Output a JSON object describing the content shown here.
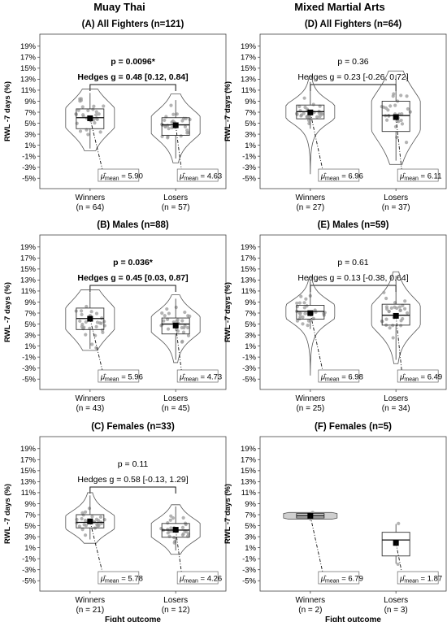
{
  "column_titles": [
    "Muay Thai",
    "Mixed Martial Arts"
  ],
  "colors": {
    "violin": "#555555",
    "box": "#333333",
    "point": "#9a9a9a",
    "mean": "#000000",
    "frame": "#444444"
  },
  "chart_data": [
    {
      "type": "violin",
      "panel": "A",
      "title": "(A) All Fighters (n=121)",
      "ylabel": "RWL -7 days (%)",
      "xlabel": "",
      "ylim": [
        -6,
        20
      ],
      "yticks": [
        "-5%",
        "-3%",
        "-1%",
        "1%",
        "3%",
        "5%",
        "7%",
        "9%",
        "11%",
        "13%",
        "15%",
        "17%",
        "19%"
      ],
      "annotation": {
        "p": "p = 0.0096*",
        "g": "Hedges g = 0.48 [0.12, 0.84]",
        "bold": true
      },
      "groups": [
        {
          "name": "Winners",
          "n_label": "(n = 64)",
          "mean": 5.9,
          "mean_label": "5.90",
          "median": 6.0,
          "q1": 4.0,
          "q3": 7.6,
          "min": 0.0,
          "max": 11.2,
          "whisker_low": 0.4,
          "whisker_high": 10.5
        },
        {
          "name": "Losers",
          "n_label": "(n = 57)",
          "mean": 4.63,
          "mean_label": "4.63",
          "median": 4.7,
          "q1": 2.8,
          "q3": 6.0,
          "min": -2.2,
          "max": 10.3,
          "whisker_low": -1.4,
          "whisker_high": 9.2
        }
      ]
    },
    {
      "type": "violin",
      "panel": "D",
      "title": "(D) All Fighters (n=64)",
      "ylabel": "RWL -7 days (%)",
      "xlabel": "",
      "ylim": [
        -6,
        20
      ],
      "yticks": [
        "-5%",
        "-3%",
        "-1%",
        "1%",
        "3%",
        "5%",
        "7%",
        "9%",
        "11%",
        "13%",
        "15%",
        "17%",
        "19%"
      ],
      "annotation": {
        "p": "p = 0.36",
        "g": "Hedges g = 0.23 [-0.26, 0.72]",
        "bold": false
      },
      "groups": [
        {
          "name": "Winners",
          "n_label": "(n = 27)",
          "mean": 6.96,
          "mean_label": "6.96",
          "median": 7.1,
          "q1": 5.8,
          "q3": 8.3,
          "min": -4.2,
          "max": 13.5,
          "whisker_low": 4.0,
          "whisker_high": 12.5
        },
        {
          "name": "Losers",
          "n_label": "(n = 37)",
          "mean": 6.11,
          "mean_label": "6.11",
          "median": 6.4,
          "q1": 3.5,
          "q3": 9.0,
          "min": -2.5,
          "max": 14.5,
          "whisker_low": -1.8,
          "whisker_high": 13.8
        }
      ]
    },
    {
      "type": "violin",
      "panel": "B",
      "title": "(B) Males (n=88)",
      "ylabel": "RWL -7 days (%)",
      "xlabel": "",
      "ylim": [
        -6,
        20
      ],
      "yticks": [
        "-5%",
        "-3%",
        "-1%",
        "1%",
        "3%",
        "5%",
        "7%",
        "9%",
        "11%",
        "13%",
        "15%",
        "17%",
        "19%"
      ],
      "annotation": {
        "p": "p = 0.036*",
        "g": "Hedges g = 0.45 [0.03, 0.87]",
        "bold": true
      },
      "groups": [
        {
          "name": "Winners",
          "n_label": "(n = 43)",
          "mean": 5.96,
          "mean_label": "5.96",
          "median": 6.0,
          "q1": 4.0,
          "q3": 7.9,
          "min": 0.2,
          "max": 11.2,
          "whisker_low": 0.5,
          "whisker_high": 10.8
        },
        {
          "name": "Losers",
          "n_label": "(n = 45)",
          "mean": 4.73,
          "mean_label": "4.73",
          "median": 5.0,
          "q1": 3.2,
          "q3": 6.1,
          "min": -2.0,
          "max": 10.3,
          "whisker_low": -1.5,
          "whisker_high": 9.6
        }
      ]
    },
    {
      "type": "violin",
      "panel": "E",
      "title": "(E) Males (n=59)",
      "ylabel": "RWL -7 days (%)",
      "xlabel": "",
      "ylim": [
        -6,
        20
      ],
      "yticks": [
        "-5%",
        "-3%",
        "-1%",
        "1%",
        "3%",
        "5%",
        "7%",
        "9%",
        "11%",
        "13%",
        "15%",
        "17%",
        "19%"
      ],
      "annotation": {
        "p": "p = 0.61",
        "g": "Hedges g = 0.13 [-0.38, 0.64]",
        "bold": false
      },
      "groups": [
        {
          "name": "Winners",
          "n_label": "(n = 25)",
          "mean": 6.98,
          "mean_label": "6.98",
          "median": 7.3,
          "q1": 5.9,
          "q3": 8.4,
          "min": -4.3,
          "max": 13.5,
          "whisker_low": 4.1,
          "whisker_high": 12.8
        },
        {
          "name": "Losers",
          "n_label": "(n = 34)",
          "mean": 6.49,
          "mean_label": "6.49",
          "median": 6.6,
          "q1": 4.8,
          "q3": 8.6,
          "min": -2.2,
          "max": 14.5,
          "whisker_low": -1.5,
          "whisker_high": 13.8
        }
      ]
    },
    {
      "type": "violin",
      "panel": "C",
      "title": "(C) Females (n=33)",
      "ylabel": "RWL -7 days (%)",
      "xlabel": "Fight outcome",
      "ylim": [
        -6,
        20
      ],
      "yticks": [
        "-5%",
        "-3%",
        "-1%",
        "1%",
        "3%",
        "5%",
        "7%",
        "9%",
        "11%",
        "13%",
        "15%",
        "17%",
        "19%"
      ],
      "annotation": {
        "p": "p = 0.11",
        "g": "Hedges g = 0.58 [-0.13, 1.29]",
        "bold": false
      },
      "groups": [
        {
          "name": "Winners",
          "n_label": "(n = 21)",
          "mean": 5.78,
          "mean_label": "5.78",
          "median": 5.6,
          "q1": 4.6,
          "q3": 7.0,
          "min": 1.8,
          "max": 11.0,
          "whisker_low": 2.5,
          "whisker_high": 10.5
        },
        {
          "name": "Losers",
          "n_label": "(n = 12)",
          "mean": 4.26,
          "mean_label": "4.26",
          "median": 4.2,
          "q1": 2.9,
          "q3": 5.4,
          "min": -0.2,
          "max": 8.8,
          "whisker_low": 0.5,
          "whisker_high": 8.5
        }
      ]
    },
    {
      "type": "violin",
      "panel": "F",
      "title": "(F) Females (n=5)",
      "ylabel": "RWL -7 days (%)",
      "xlabel": "Fight outcome",
      "ylim": [
        -6,
        20
      ],
      "yticks": [
        "-5%",
        "-3%",
        "-1%",
        "1%",
        "3%",
        "5%",
        "7%",
        "9%",
        "11%",
        "13%",
        "15%",
        "17%",
        "19%"
      ],
      "annotation": null,
      "groups": [
        {
          "name": "Winners",
          "n_label": "(n = 2)",
          "mean": 6.79,
          "mean_label": "6.79",
          "median": 6.79,
          "q1": 6.4,
          "q3": 7.2,
          "min": 6.2,
          "max": 7.4,
          "whisker_low": 6.3,
          "whisker_high": 7.3
        },
        {
          "name": "Losers",
          "n_label": "(n = 3)",
          "mean": 1.87,
          "mean_label": "1.87",
          "median": 2.4,
          "q1": -0.5,
          "q3": 3.8,
          "min": -2.0,
          "max": 5.4,
          "whisker_low": -1.9,
          "whisker_high": 5.3
        }
      ]
    }
  ]
}
